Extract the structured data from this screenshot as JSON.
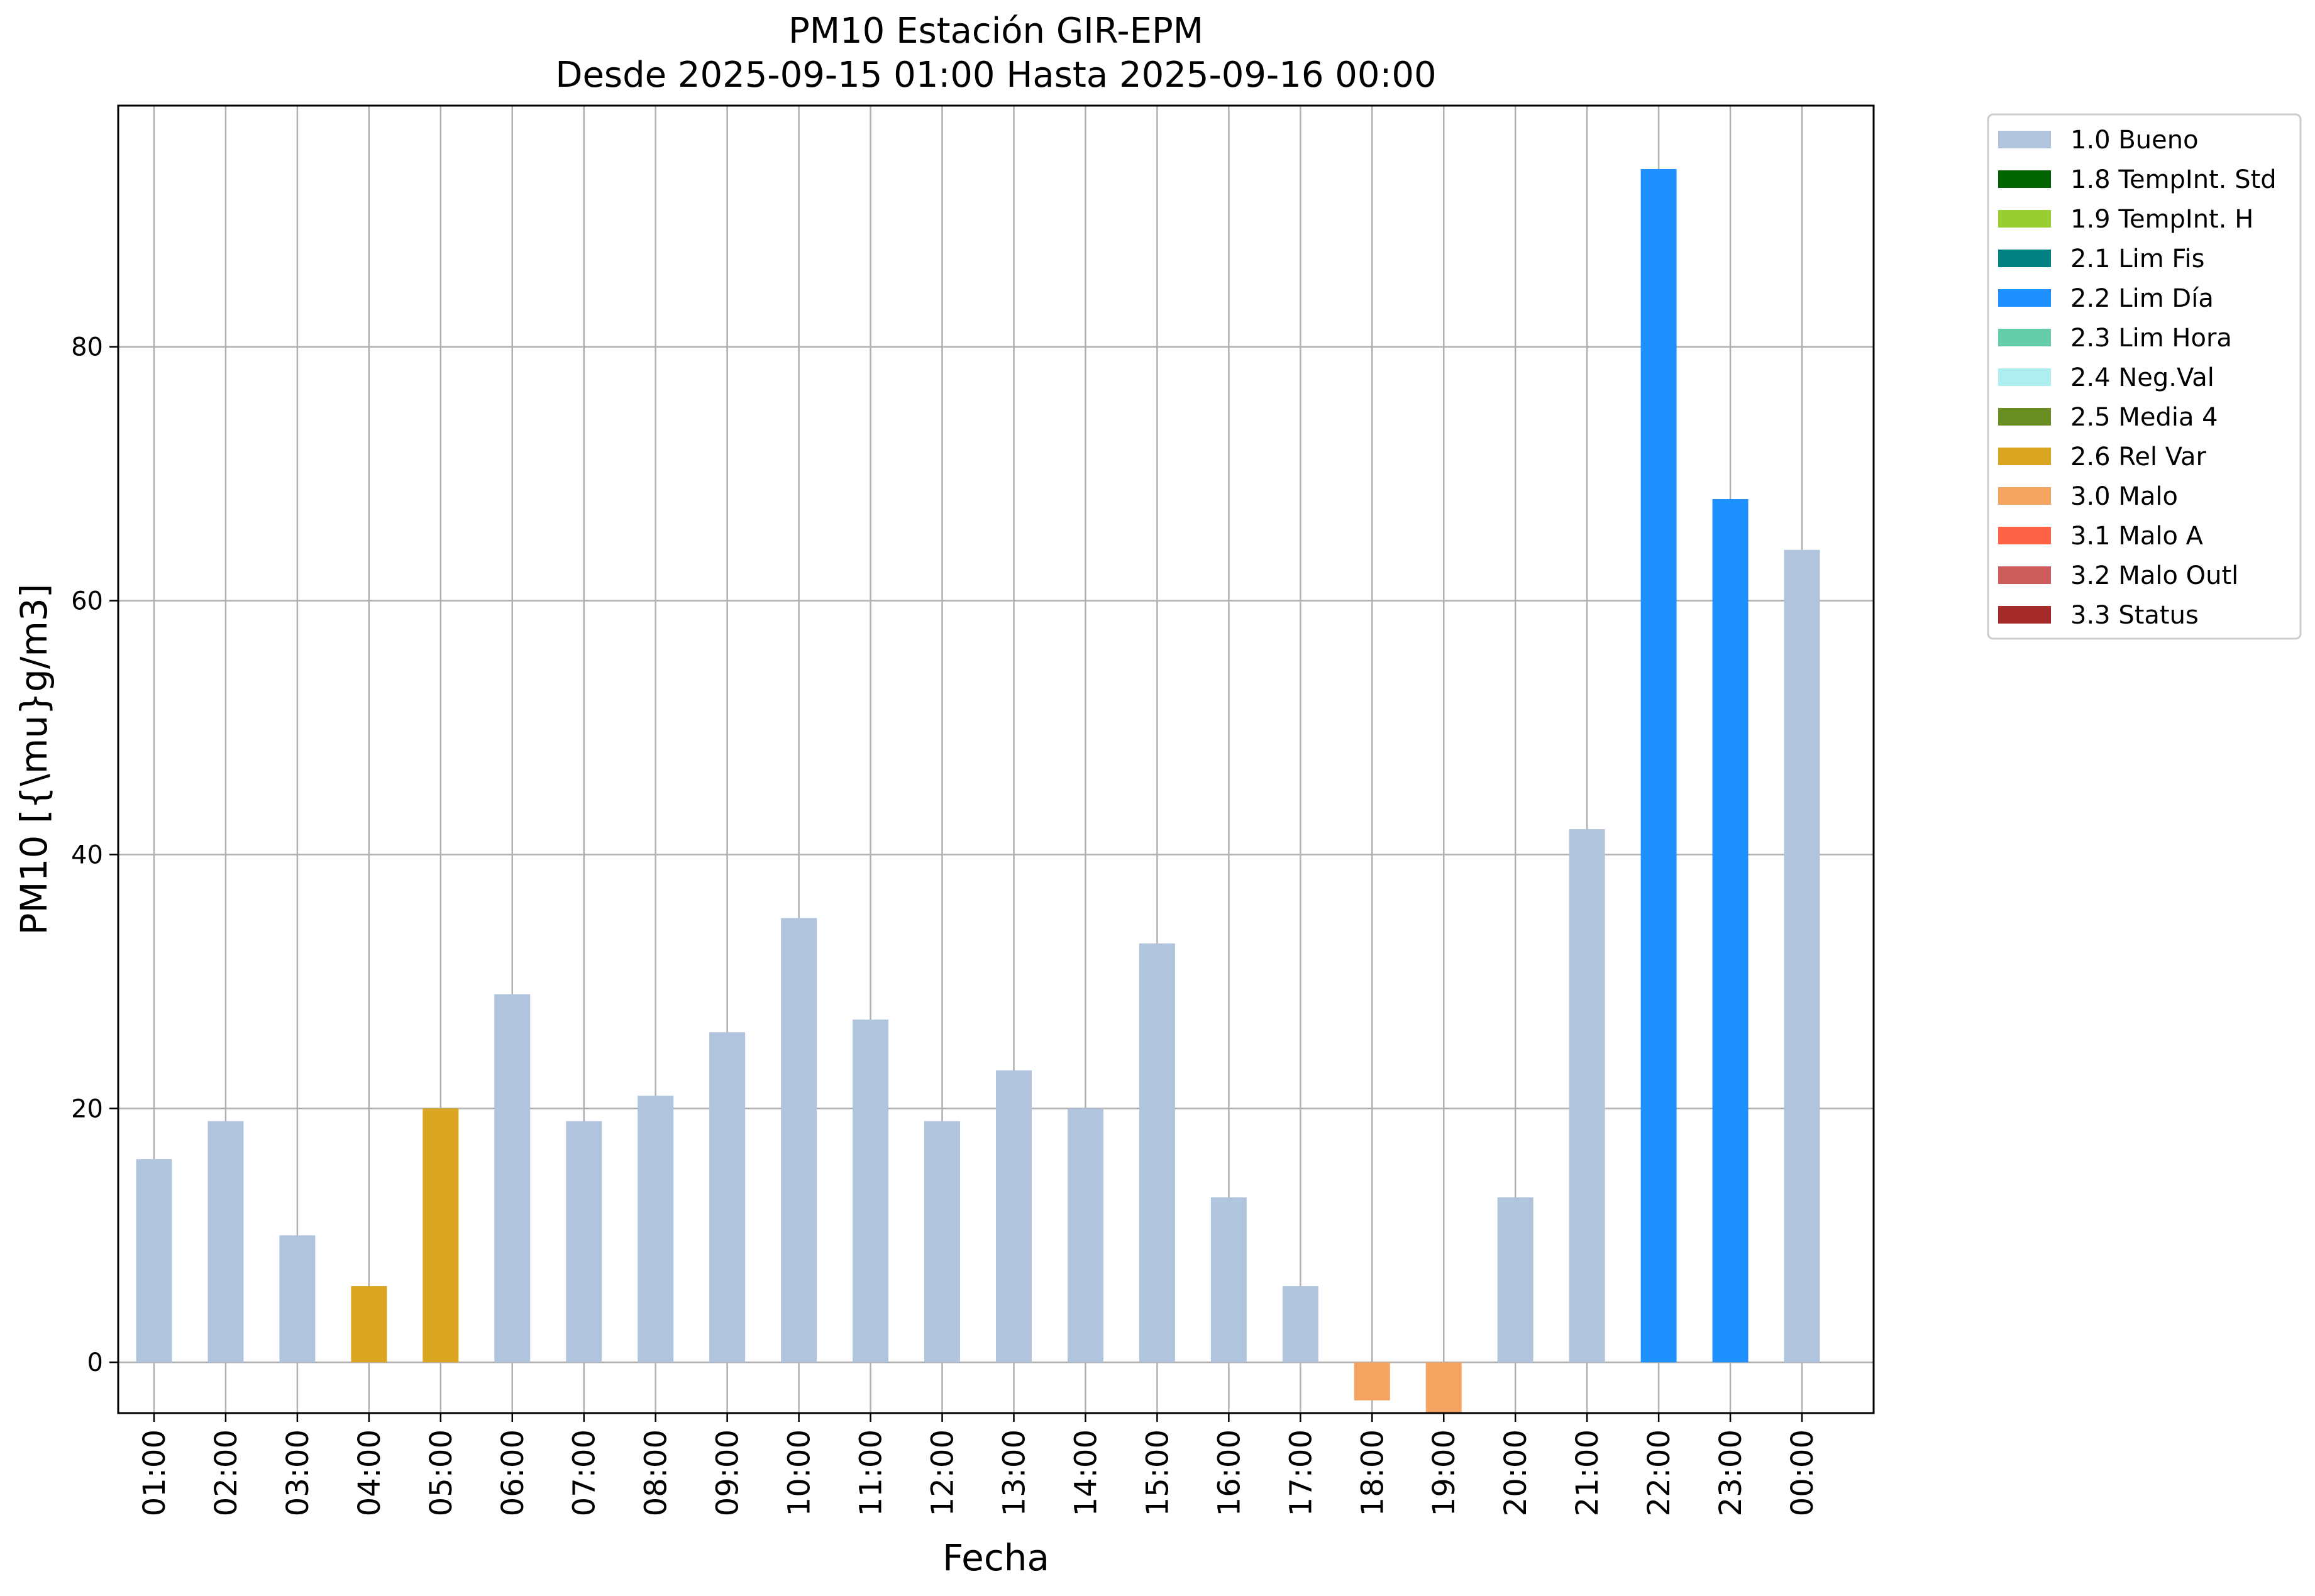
{
  "chart_data": {
    "type": "bar",
    "title_line1": "PM10 Estación GIR-EPM",
    "title_line2": "Desde 2025-09-15 01:00 Hasta 2025-09-16 00:00",
    "xlabel": "Fecha",
    "ylabel": "PM10 [{\\mu}g/m3]",
    "ylim": [
      -4,
      99
    ],
    "yticks": [
      0,
      20,
      40,
      60,
      80
    ],
    "grid": true,
    "legend_position": "outside-right-top",
    "categories": [
      "01:00",
      "02:00",
      "03:00",
      "04:00",
      "05:00",
      "06:00",
      "07:00",
      "08:00",
      "09:00",
      "10:00",
      "11:00",
      "12:00",
      "13:00",
      "14:00",
      "15:00",
      "16:00",
      "17:00",
      "18:00",
      "19:00",
      "20:00",
      "21:00",
      "22:00",
      "23:00",
      "00:00"
    ],
    "values": [
      16,
      19,
      10,
      6,
      20,
      29,
      19,
      21,
      26,
      35,
      27,
      19,
      23,
      20,
      33,
      13,
      6,
      -3,
      -4,
      13,
      42,
      94,
      68,
      64
    ],
    "flags": [
      "1.0 Bueno",
      "1.0 Bueno",
      "1.0 Bueno",
      "2.6 Rel Var",
      "2.6 Rel Var",
      "1.0 Bueno",
      "1.0 Bueno",
      "1.0 Bueno",
      "1.0 Bueno",
      "1.0 Bueno",
      "1.0 Bueno",
      "1.0 Bueno",
      "1.0 Bueno",
      "1.0 Bueno",
      "1.0 Bueno",
      "1.0 Bueno",
      "1.0 Bueno",
      "3.0 Malo",
      "3.0 Malo",
      "1.0 Bueno",
      "1.0 Bueno",
      "2.2 Lim Día",
      "2.2 Lim Día",
      "1.0 Bueno"
    ],
    "legend": [
      {
        "label": "1.0 Bueno",
        "color": "#b0c4de"
      },
      {
        "label": "1.8 TempInt. Std",
        "color": "#006400"
      },
      {
        "label": "1.9 TempInt. H",
        "color": "#9acd32"
      },
      {
        "label": "2.1 Lim Fis",
        "color": "#008080"
      },
      {
        "label": "2.2 Lim Día",
        "color": "#1e90ff"
      },
      {
        "label": "2.3 Lim Hora",
        "color": "#66cdaa"
      },
      {
        "label": "2.4 Neg.Val",
        "color": "#afeeee"
      },
      {
        "label": "2.5 Media 4",
        "color": "#6b8e23"
      },
      {
        "label": "2.6 Rel Var",
        "color": "#daa520"
      },
      {
        "label": "3.0 Malo",
        "color": "#f4a460"
      },
      {
        "label": "3.1 Malo A",
        "color": "#ff6347"
      },
      {
        "label": "3.2 Malo Outl",
        "color": "#cd5c5c"
      },
      {
        "label": "3.3 Status",
        "color": "#a52a2a"
      }
    ]
  }
}
